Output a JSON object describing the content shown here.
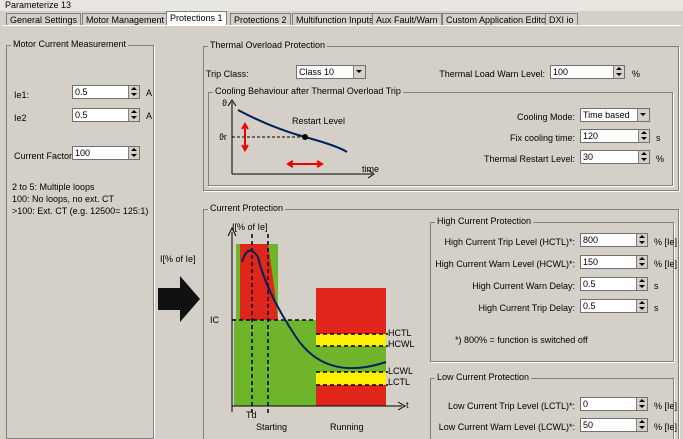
{
  "window_title": "Parameterize 13",
  "tabs": [
    "General Settings",
    "Motor Management",
    "Protections 1",
    "Protections 2",
    "Multifunction Inputs",
    "Aux Fault/Warn",
    "Custom Application Editor",
    "DXI io"
  ],
  "motor_current": {
    "title": "Motor Current Measurement",
    "ie1": {
      "label": "Ie1:",
      "value": "0.5",
      "unit": "A"
    },
    "ie2": {
      "label": "Ie2",
      "value": "0.5",
      "unit": "A"
    },
    "current_factor": {
      "label": "Current Factor",
      "value": "100"
    },
    "notes": [
      "2 to 5: Multiple loops",
      "100: No loops, no ext. CT",
      ">100: Ext. CT (e.g. 12500= 125:1)"
    ]
  },
  "arrow_label": "I[% of Ie]",
  "thermal": {
    "title": "Thermal Overload Protection",
    "trip_class": {
      "label": "Trip Class:",
      "value": "Class 10"
    },
    "warn_level": {
      "label": "Thermal Load Warn Level:",
      "value": "100",
      "unit": "%"
    },
    "cooling": {
      "title": "Cooling Behaviour after Thermal Overload Trip",
      "diagram": {
        "y_axis": "ϑ",
        "restart_axis": "ϑr",
        "restart_label": "Restart Level",
        "x_axis": "time"
      },
      "mode": {
        "label": "Cooling Mode:",
        "value": "Time based"
      },
      "fix_time": {
        "label": "Fix cooling time:",
        "value": "120",
        "unit": "s"
      },
      "restart_level": {
        "label": "Thermal Restart Level:",
        "value": "30",
        "unit": "%"
      }
    }
  },
  "current_protection": {
    "title": "Current Protection",
    "diagram": {
      "y_axis": "I[% of Ie]",
      "ie_label": "IC",
      "hctl": "HCTL",
      "hcwl": "HCWL",
      "lcwl": "LCWL",
      "lctl": "LCTL",
      "x_axis": "t",
      "td": "Td",
      "starting": "Starting",
      "running": "Running"
    },
    "high": {
      "title": "High Current Protection",
      "rows": [
        {
          "label": "High Current Trip Level (HCTL)*:",
          "value": "800",
          "unit": "% [Ie]"
        },
        {
          "label": "High Current Warn Level (HCWL)*:",
          "value": "150",
          "unit": "% [Ie]"
        },
        {
          "label": "High Current Warn Delay:",
          "value": "0.5",
          "unit": "s"
        },
        {
          "label": "High Current Trip Delay:",
          "value": "0.5",
          "unit": "s"
        }
      ],
      "note": "*) 800% = function is switched off"
    },
    "low": {
      "title": "Low Current Protection",
      "rows": [
        {
          "label": "Low Current Trip Level (LCTL)*:",
          "value": "0",
          "unit": "% [Ie]"
        },
        {
          "label": "Low Current Warn Level (LCWL)*:",
          "value": "50",
          "unit": "% [Ie]"
        }
      ]
    }
  }
}
